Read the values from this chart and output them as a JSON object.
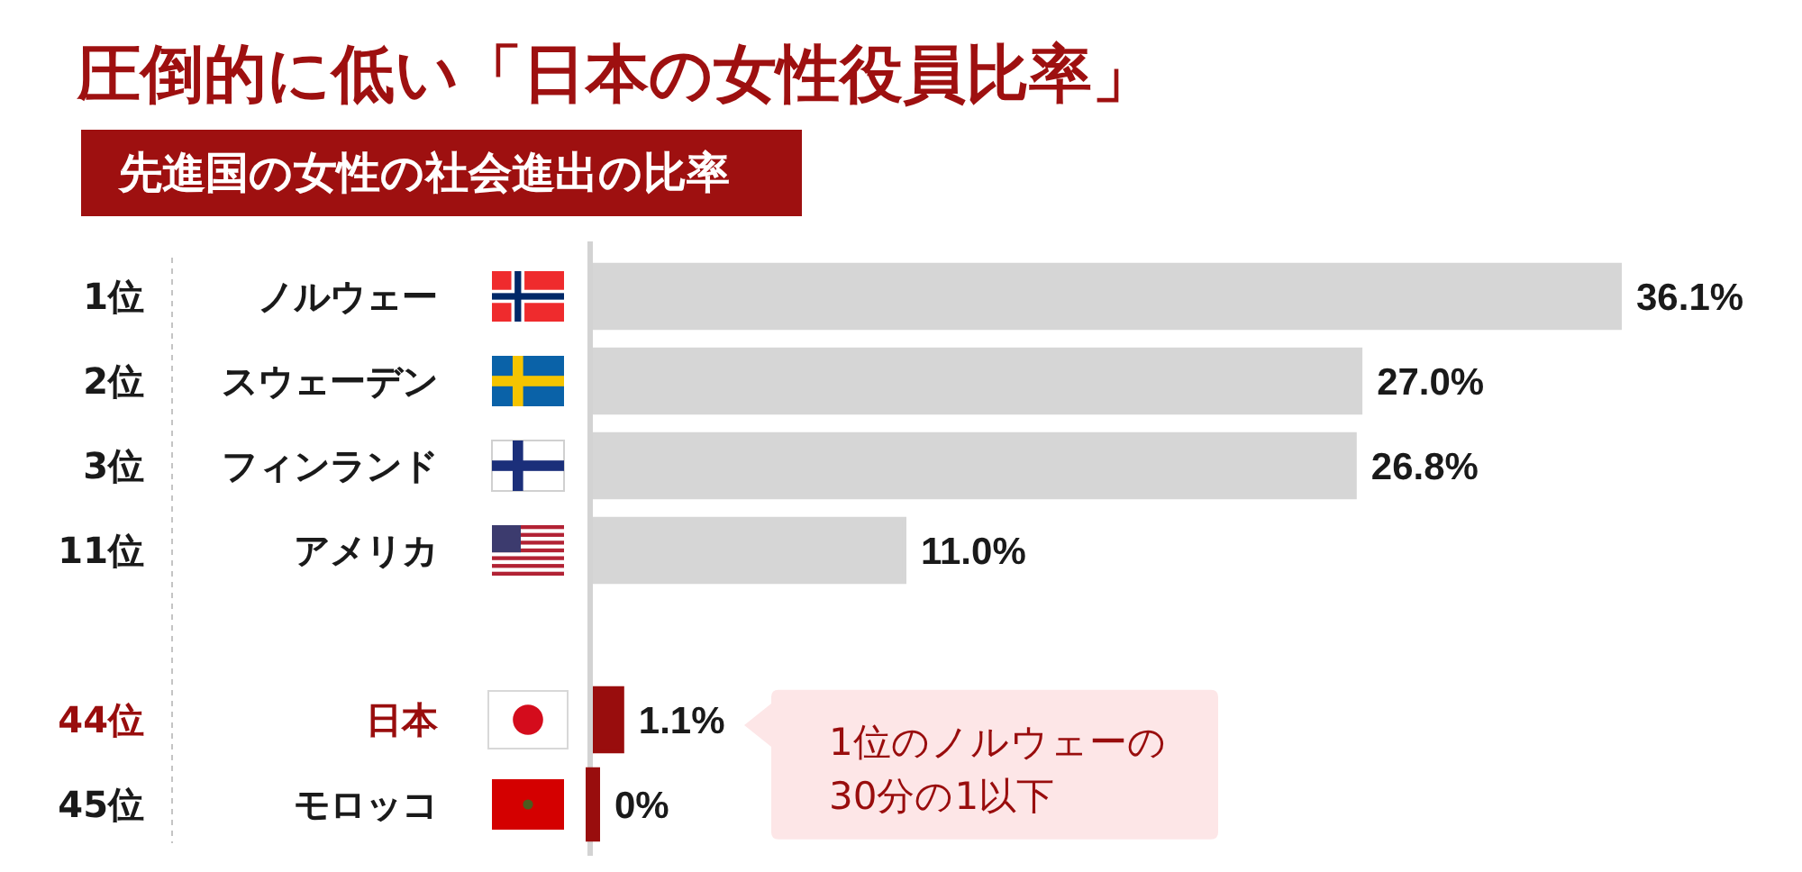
{
  "chart_data": {
    "type": "bar",
    "orientation": "horizontal",
    "title": "圧倒的に低い「日本の女性役員比率」",
    "subtitle": "先進国の女性の社会進出の比率",
    "categories": [
      "ノルウェー",
      "スウェーデン",
      "フィンランド",
      "アメリカ",
      null,
      "日本",
      "モロッコ"
    ],
    "y2_categories": [
      "1位",
      "2位",
      "3位",
      "11位",
      null,
      "44位",
      "45位"
    ],
    "values": [
      36.1,
      27.0,
      26.8,
      11.0,
      null,
      1.1,
      0
    ],
    "colors": [
      "#d6d6d6",
      "#d6d6d6",
      "#d6d6d6",
      "#d6d6d6",
      null,
      "#990d0d",
      "#990d0d"
    ],
    "value_labels": [
      "36.1%",
      "27.0%",
      "26.8%",
      "11.0%",
      null,
      "1.1%",
      "0%"
    ],
    "annotations": [
      "1位のノルウェーの\n30分の1以下"
    ],
    "tick_labels": "y"
  }
}
